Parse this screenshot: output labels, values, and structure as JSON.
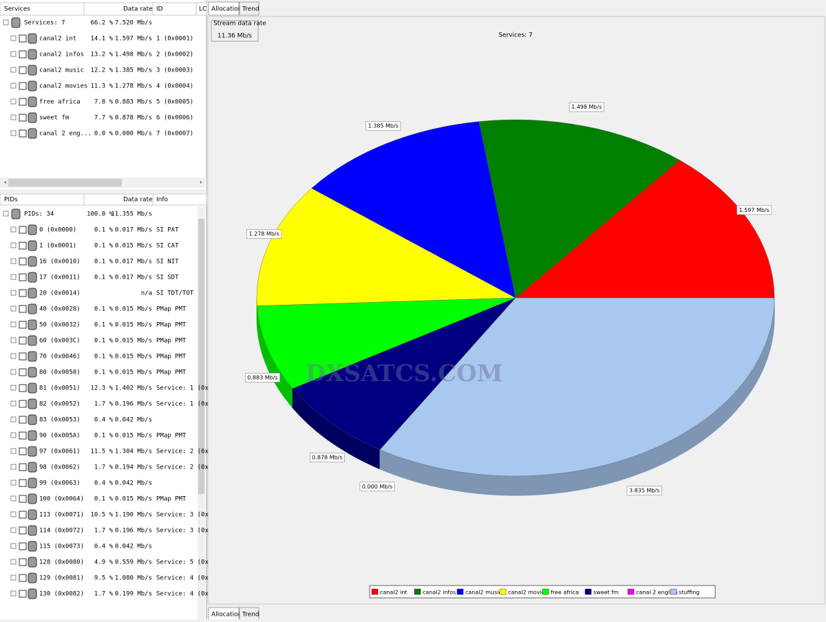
{
  "services_panel": {
    "header": [
      "Services",
      "Data rate",
      "ID",
      "LC"
    ],
    "summary": {
      "name": "Services: 7",
      "pct": "66.2 %",
      "rate": "7.520 Mb/s"
    },
    "rows": [
      {
        "name": "canal2 int",
        "pct": "14.1 %",
        "rate": "1.597 Mb/s",
        "id": "1 (0x0001)"
      },
      {
        "name": "canal2 infos",
        "pct": "13.2 %",
        "rate": "1.498 Mb/s",
        "id": "2 (0x0002)"
      },
      {
        "name": "canal2 music",
        "pct": "12.2 %",
        "rate": "1.385 Mb/s",
        "id": "3 (0x0003)"
      },
      {
        "name": "canal2 movies",
        "pct": "11.3 %",
        "rate": "1.278 Mb/s",
        "id": "4 (0x0004)"
      },
      {
        "name": "free africa",
        "pct": "7.8 %",
        "rate": "0.883 Mb/s",
        "id": "5 (0x0005)"
      },
      {
        "name": "sweet fm",
        "pct": "7.7 %",
        "rate": "0.878 Mb/s",
        "id": "6 (0x0006)"
      },
      {
        "name": "canal 2 eng...",
        "pct": "0.0 %",
        "rate": "0.000 Mb/s",
        "id": "7 (0x0007)"
      }
    ]
  },
  "pids_panel": {
    "header": [
      "PIDs",
      "Data rate",
      "Info"
    ],
    "summary": {
      "name": "PIDs: 34",
      "pct": "100.0 %",
      "rate": "11.355 Mb/s"
    },
    "rows": [
      {
        "name": "0 (0x0000)",
        "pct": "0.1 %",
        "rate": "0.017 Mb/s",
        "info": "SI PAT"
      },
      {
        "name": "1 (0x0001)",
        "pct": "0.1 %",
        "rate": "0.015 Mb/s",
        "info": "SI CAT"
      },
      {
        "name": "16 (0x0010)",
        "pct": "0.1 %",
        "rate": "0.017 Mb/s",
        "info": "SI NIT"
      },
      {
        "name": "17 (0x0011)",
        "pct": "0.1 %",
        "rate": "0.017 Mb/s",
        "info": "SI SDT"
      },
      {
        "name": "20 (0x0014)",
        "rate": "n/a",
        "info": "SI TDT/TOT"
      },
      {
        "name": "40 (0x0028)",
        "pct": "0.1 %",
        "rate": "0.015 Mb/s",
        "info": "PMap PMT"
      },
      {
        "name": "50 (0x0032)",
        "pct": "0.1 %",
        "rate": "0.015 Mb/s",
        "info": "PMap PMT"
      },
      {
        "name": "60 (0x003C)",
        "pct": "0.1 %",
        "rate": "0.015 Mb/s",
        "info": "PMap PMT"
      },
      {
        "name": "70 (0x0046)",
        "pct": "0.1 %",
        "rate": "0.015 Mb/s",
        "info": "PMap PMT"
      },
      {
        "name": "80 (0x0050)",
        "pct": "0.1 %",
        "rate": "0.015 Mb/s",
        "info": "PMap PMT"
      },
      {
        "name": "81 (0x0051)",
        "pct": "12.3 %",
        "rate": "1.402 Mb/s",
        "info": "Service: 1 (0x"
      },
      {
        "name": "82 (0x0052)",
        "pct": "1.7 %",
        "rate": "0.196 Mb/s",
        "info": "Service: 1 (0x"
      },
      {
        "name": "83 (0x0053)",
        "pct": "0.4 %",
        "rate": "0.042 Mb/s"
      },
      {
        "name": "90 (0x005A)",
        "pct": "0.1 %",
        "rate": "0.015 Mb/s",
        "info": "PMap PMT"
      },
      {
        "name": "97 (0x0061)",
        "pct": "11.5 %",
        "rate": "1.304 Mb/s",
        "info": "Service: 2 (0x"
      },
      {
        "name": "98 (0x0062)",
        "pct": "1.7 %",
        "rate": "0.194 Mb/s",
        "info": "Service: 2 (0x"
      },
      {
        "name": "99 (0x0063)",
        "pct": "0.4 %",
        "rate": "0.042 Mb/s"
      },
      {
        "name": "100 (0x0064)",
        "pct": "0.1 %",
        "rate": "0.015 Mb/s",
        "info": "PMap PMT"
      },
      {
        "name": "113 (0x0071)",
        "pct": "10.5 %",
        "rate": "1.190 Mb/s",
        "info": "Service: 3 (0x"
      },
      {
        "name": "114 (0x0072)",
        "pct": "1.7 %",
        "rate": "0.196 Mb/s",
        "info": "Service: 3 (0x"
      },
      {
        "name": "115 (0x0073)",
        "pct": "0.4 %",
        "rate": "0.042 Mb/s"
      },
      {
        "name": "128 (0x0080)",
        "pct": "4.9 %",
        "rate": "0.559 Mb/s",
        "info": "Service: 5 (0x"
      },
      {
        "name": "129 (0x0081)",
        "pct": "9.5 %",
        "rate": "1.080 Mb/s",
        "info": "Service: 4 (0x"
      },
      {
        "name": "130 (0x0082)",
        "pct": "1.7 %",
        "rate": "0.199 Mb/s",
        "info": "Service: 4 (0x"
      }
    ]
  },
  "tabs": [
    "Allocation",
    "Trend"
  ],
  "stream_box": {
    "label": "Stream data rate",
    "value": "11.36 Mb/s"
  },
  "watermark": "DXSATCS.COM",
  "chart_data": {
    "type": "pie",
    "title": "Services: 7",
    "categories": [
      "canal2 int",
      "canal2 infos",
      "canal2 music",
      "canal2 movies",
      "free africa",
      "sweet fm",
      "canal 2 english",
      "stuffing"
    ],
    "values": [
      1.597,
      1.498,
      1.385,
      1.278,
      0.883,
      0.878,
      0.0,
      3.835
    ],
    "value_labels": [
      "1.597 Mb/s",
      "1.498 Mb/s",
      "1.385 Mb/s",
      "1.278 Mb/s",
      "0.883 Mb/s",
      "0.878 Mb/s",
      "0.000 Mb/s",
      "3.835 Mb/s"
    ],
    "colors": [
      "#ff0000",
      "#008000",
      "#0000ff",
      "#ffff00",
      "#00ff00",
      "#000080",
      "#ff00ff",
      "#a8c8f0"
    ],
    "legend": "bottom"
  }
}
